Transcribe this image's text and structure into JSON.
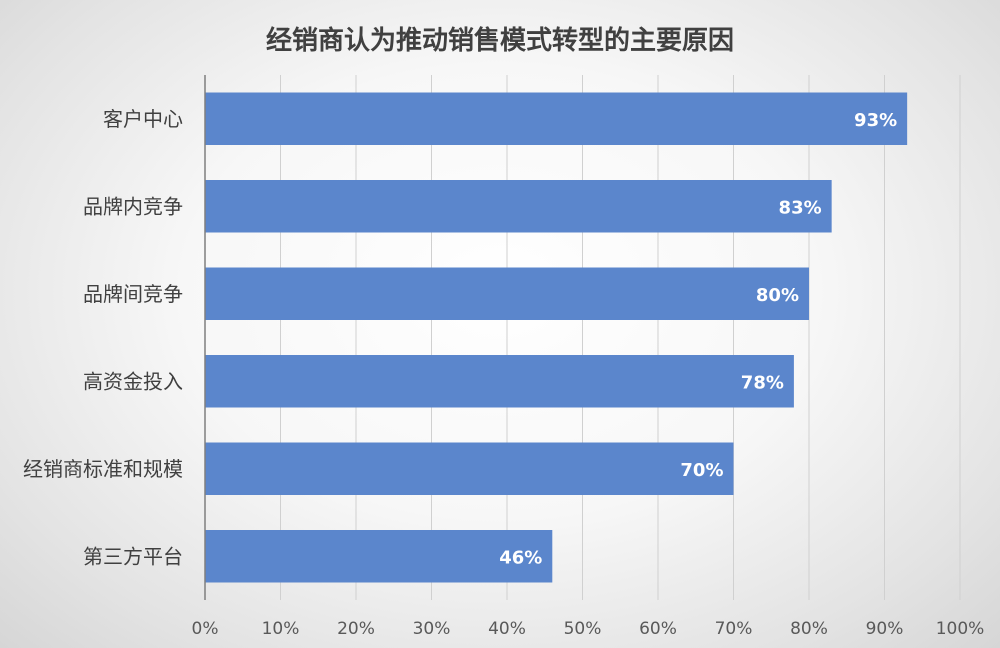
{
  "chart_data": {
    "type": "bar",
    "orientation": "horizontal",
    "title": "经销商认为推动销售模式转型的主要原因",
    "categories": [
      "客户中心",
      "品牌内竞争",
      "品牌间竞争",
      "高资金投入",
      "经销商标准和规模",
      "第三方平台"
    ],
    "values": [
      93,
      83,
      80,
      78,
      70,
      46
    ],
    "value_labels": [
      "93%",
      "83%",
      "80%",
      "78%",
      "70%",
      "46%"
    ],
    "x_ticks": [
      "0%",
      "10%",
      "20%",
      "30%",
      "40%",
      "50%",
      "60%",
      "70%",
      "80%",
      "90%",
      "100%"
    ],
    "xlim": [
      0,
      100
    ],
    "grid": "vertical",
    "legend": "none",
    "bar_color": "#5b86cc"
  }
}
